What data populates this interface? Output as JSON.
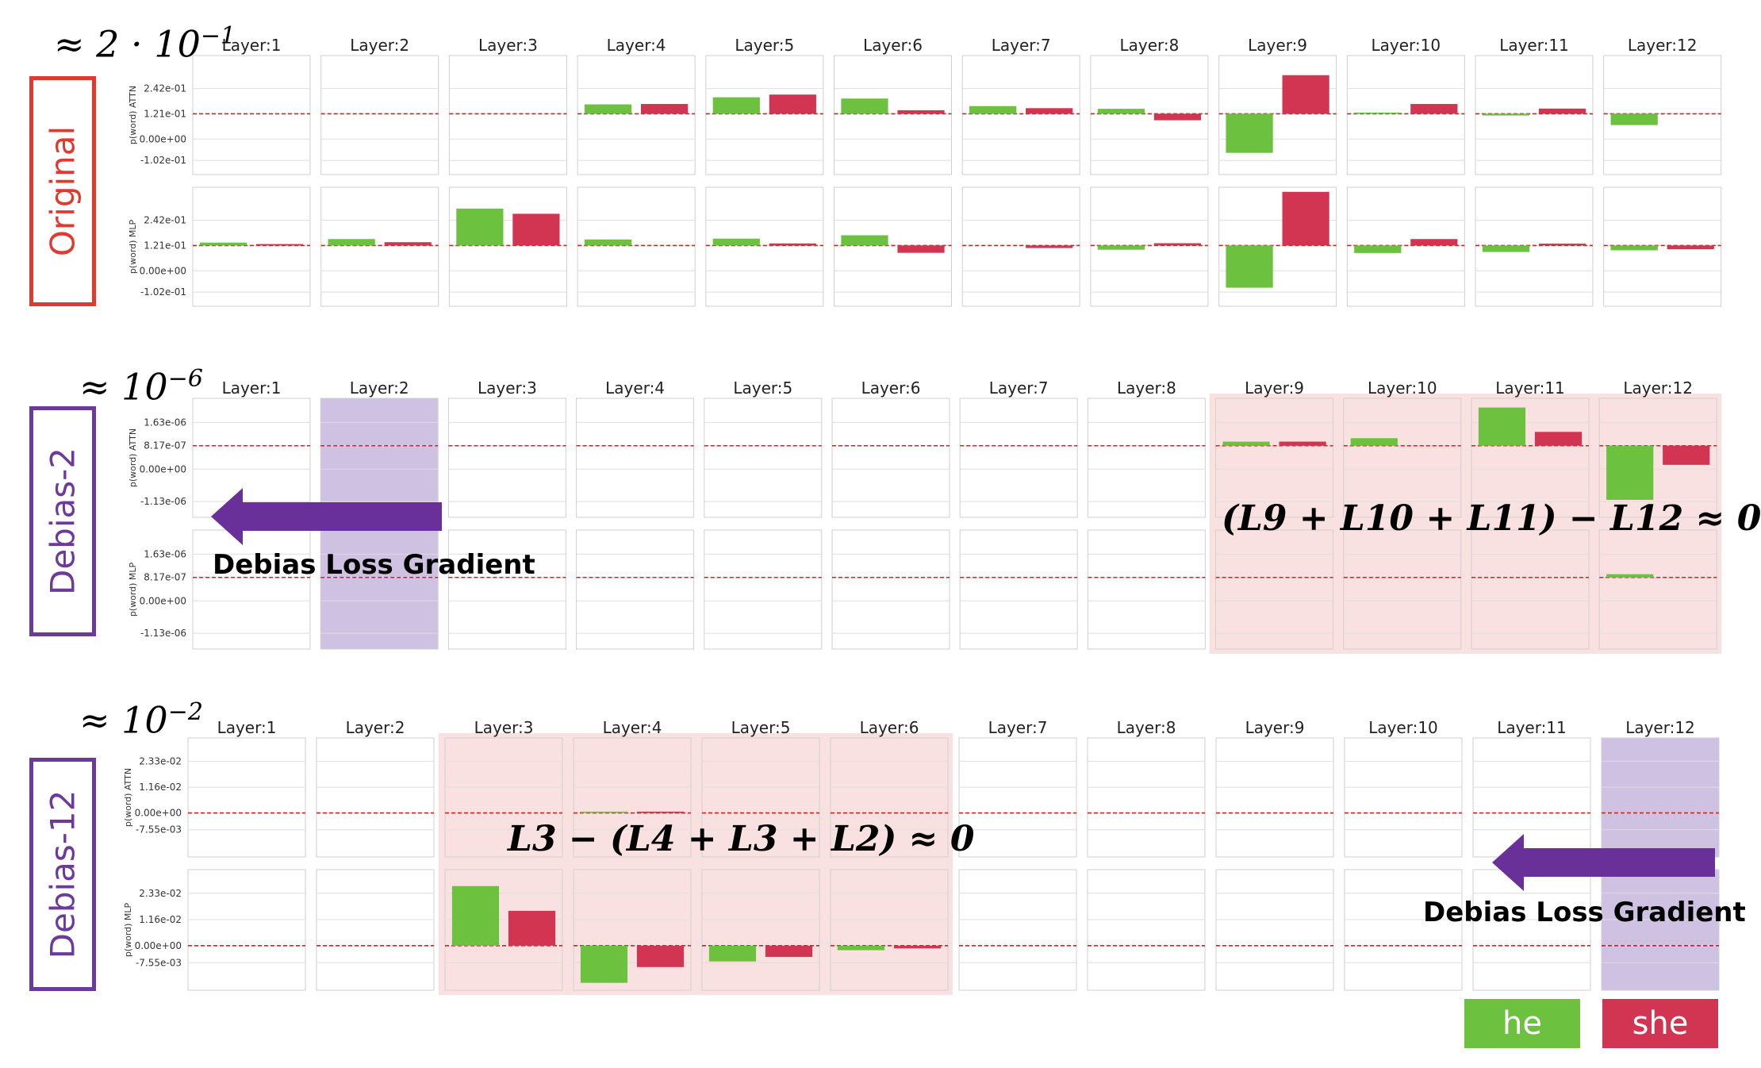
{
  "chart_data": {
    "type": "bar",
    "legend": [
      {
        "name": "he",
        "color": "#6cc13f"
      },
      {
        "name": "she",
        "color": "#d13552"
      }
    ],
    "panels": [
      {
        "name": "Original",
        "frame_color": "#e03a2e",
        "scale": "≈ 2 · 10",
        "scale_exp": "−1",
        "layers": [
          "Layer:1",
          "Layer:2",
          "Layer:3",
          "Layer:4",
          "Layer:5",
          "Layer:6",
          "Layer:7",
          "Layer:8",
          "Layer:9",
          "Layer:10",
          "Layer:11",
          "Layer:12"
        ],
        "rows": [
          {
            "ylabel": "p(word) ATTN",
            "yticks": [
              {
                "label": "2.42e-01",
                "value": 0.242
              },
              {
                "label": "1.21e-01",
                "value": 0.121
              },
              {
                "label": "0.00e+00",
                "value": 0.0
              },
              {
                "label": "-1.02e-01",
                "value": -0.102
              }
            ],
            "ylim": [
              -0.17,
              0.4
            ],
            "baseline": 0.121,
            "he": [
              0.121,
              0.121,
              0.121,
              0.166,
              0.2,
              0.194,
              0.158,
              0.145,
              -0.066,
              0.127,
              0.113,
              0.067
            ],
            "she": [
              0.121,
              0.121,
              0.121,
              0.168,
              0.213,
              0.138,
              0.148,
              0.09,
              0.306,
              0.168,
              0.146,
              0.121
            ]
          },
          {
            "ylabel": "p(word) MLP",
            "yticks": [
              {
                "label": "2.42e-01",
                "value": 0.242
              },
              {
                "label": "1.21e-01",
                "value": 0.121
              },
              {
                "label": "0.00e+00",
                "value": 0.0
              },
              {
                "label": "-1.02e-01",
                "value": -0.102
              }
            ],
            "ylim": [
              -0.17,
              0.4
            ],
            "baseline": 0.121,
            "he": [
              0.135,
              0.152,
              0.298,
              0.15,
              0.154,
              0.17,
              0.121,
              0.101,
              -0.081,
              0.085,
              0.09,
              0.098
            ],
            "she": [
              0.128,
              0.137,
              0.273,
              0.121,
              0.131,
              0.086,
              0.109,
              0.132,
              0.378,
              0.152,
              0.13,
              0.103
            ]
          }
        ],
        "annotation": "",
        "highlight_layers": [],
        "gradient_layer": null
      },
      {
        "name": "Debias-2",
        "frame_color": "#6c3a9a",
        "scale": "≈ 10",
        "scale_exp": "−6",
        "layers": [
          "Layer:1",
          "Layer:2",
          "Layer:3",
          "Layer:4",
          "Layer:5",
          "Layer:6",
          "Layer:7",
          "Layer:8",
          "Layer:9",
          "Layer:10",
          "Layer:11",
          "Layer:12"
        ],
        "rows": [
          {
            "ylabel": "p(word) ATTN",
            "yticks": [
              {
                "label": "1.63e-06",
                "value": 1.63e-06
              },
              {
                "label": "8.17e-07",
                "value": 8.17e-07
              },
              {
                "label": "0.00e+00",
                "value": 0.0
              },
              {
                "label": "-1.13e-06",
                "value": -1.13e-06
              }
            ],
            "ylim": [
              -1.68e-06,
              2.47e-06
            ],
            "baseline": 8.17e-07,
            "he": [
              8.17e-07,
              8.17e-07,
              8.17e-07,
              8.17e-07,
              8.17e-07,
              8.17e-07,
              8.17e-07,
              8.17e-07,
              9.6e-07,
              1.08e-06,
              2.15e-06,
              -1.07e-06
            ],
            "she": [
              8.17e-07,
              8.17e-07,
              8.17e-07,
              8.17e-07,
              8.17e-07,
              8.17e-07,
              8.17e-07,
              8.17e-07,
              9.6e-07,
              8.17e-07,
              1.3e-06,
              1.5e-07
            ]
          },
          {
            "ylabel": "p(word) MLP",
            "yticks": [
              {
                "label": "1.63e-06",
                "value": 1.63e-06
              },
              {
                "label": "8.17e-07",
                "value": 8.17e-07
              },
              {
                "label": "0.00e+00",
                "value": 0.0
              },
              {
                "label": "-1.13e-06",
                "value": -1.13e-06
              }
            ],
            "ylim": [
              -1.68e-06,
              2.47e-06
            ],
            "baseline": 8.17e-07,
            "he": [
              8.17e-07,
              8.17e-07,
              8.17e-07,
              8.17e-07,
              8.17e-07,
              8.17e-07,
              8.17e-07,
              8.17e-07,
              8.17e-07,
              8.17e-07,
              8.17e-07,
              9.3e-07
            ],
            "she": [
              8.17e-07,
              8.17e-07,
              8.17e-07,
              8.17e-07,
              8.17e-07,
              8.17e-07,
              8.17e-07,
              8.17e-07,
              8.17e-07,
              8.17e-07,
              8.17e-07,
              8.17e-07
            ]
          }
        ],
        "annotation": "(L9 + L10 + L11)  − L12 ≈ 0",
        "highlight_layers": [
          9,
          10,
          11,
          12
        ],
        "gradient_layer": 2,
        "gradient_label": "Debias Loss Gradient"
      },
      {
        "name": "Debias-12",
        "frame_color": "#6c3a9a",
        "scale": "≈ 10",
        "scale_exp": "−2",
        "layers": [
          "Layer:1",
          "Layer:2",
          "Layer:3",
          "Layer:4",
          "Layer:5",
          "Layer:6",
          "Layer:7",
          "Layer:8",
          "Layer:9",
          "Layer:10",
          "Layer:11",
          "Layer:12"
        ],
        "rows": [
          {
            "ylabel": "p(word) ATTN",
            "yticks": [
              {
                "label": "2.33e-02",
                "value": 0.0233
              },
              {
                "label": "1.16e-02",
                "value": 0.0116
              },
              {
                "label": "0.00e+00",
                "value": 0.0
              },
              {
                "label": "-7.55e-03",
                "value": -0.00755
              }
            ],
            "ylim": [
              -0.0198,
              0.0338
            ],
            "baseline": 0.0,
            "he": [
              0,
              0,
              0,
              0.0006,
              0,
              0,
              0,
              0,
              0,
              0,
              0,
              0
            ],
            "she": [
              0,
              0,
              0,
              0.0006,
              0,
              0,
              0,
              0,
              0,
              0,
              0,
              0
            ]
          },
          {
            "ylabel": "p(word) MLP",
            "yticks": [
              {
                "label": "2.33e-02",
                "value": 0.0233
              },
              {
                "label": "1.16e-02",
                "value": 0.0116
              },
              {
                "label": "0.00e+00",
                "value": 0.0
              },
              {
                "label": "-7.55e-03",
                "value": -0.00755
              }
            ],
            "ylim": [
              -0.0198,
              0.0338
            ],
            "baseline": 0.0,
            "he": [
              0,
              0,
              0.0265,
              -0.0165,
              -0.007,
              -0.002,
              0,
              0,
              0,
              0,
              0,
              0
            ],
            "she": [
              0,
              0,
              0.0155,
              -0.0095,
              -0.005,
              -0.0012,
              0,
              0,
              0,
              0,
              0,
              0
            ]
          }
        ],
        "annotation": "L3  − (L4 + L3 + L2) ≈ 0",
        "highlight_layers": [
          3,
          4,
          5,
          6
        ],
        "gradient_layer": 12,
        "gradient_label": "Debias Loss Gradient"
      }
    ]
  }
}
